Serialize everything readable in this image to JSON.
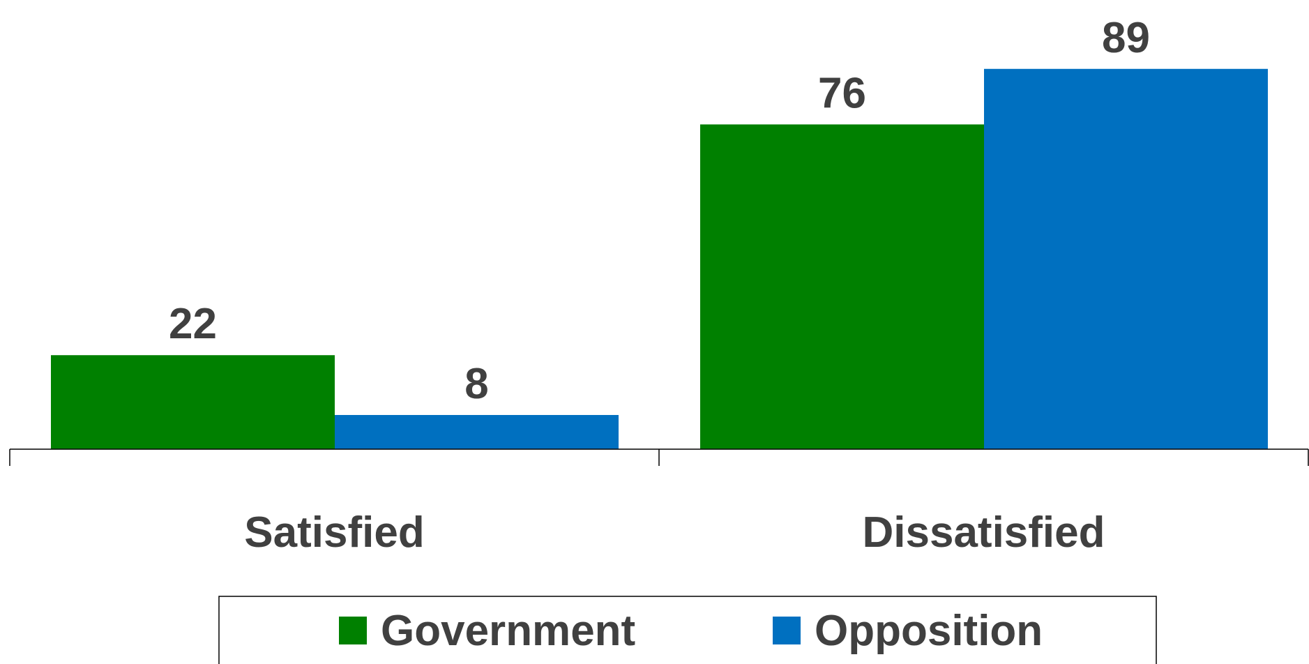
{
  "chart_data": {
    "type": "bar",
    "categories": [
      "Satisfied",
      "Dissatisfied"
    ],
    "series": [
      {
        "name": "Government",
        "values": [
          22,
          76
        ],
        "color": "#008000"
      },
      {
        "name": "Opposition",
        "values": [
          8,
          89
        ],
        "color": "#0070C0"
      }
    ],
    "title": "",
    "xlabel": "",
    "ylabel": "",
    "ylim": [
      0,
      95
    ],
    "grid": false,
    "legend_position": "bottom",
    "data_labels": true
  }
}
